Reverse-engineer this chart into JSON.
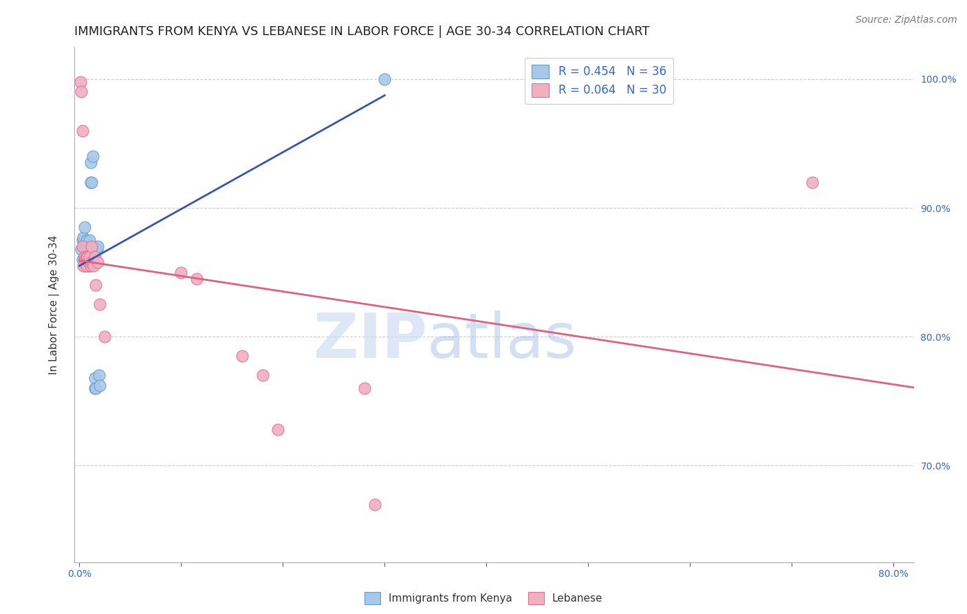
{
  "title": "IMMIGRANTS FROM KENYA VS LEBANESE IN LABOR FORCE | AGE 30-34 CORRELATION CHART",
  "source": "Source: ZipAtlas.com",
  "ylabel": "In Labor Force | Age 30-34",
  "x_tick_labels": [
    "0.0%",
    "",
    "",
    "",
    "",
    "",
    "",
    "",
    "80.0%"
  ],
  "x_tick_values": [
    0.0,
    0.1,
    0.2,
    0.3,
    0.4,
    0.5,
    0.6,
    0.7,
    0.8
  ],
  "y_tick_labels": [
    "100.0%",
    "90.0%",
    "80.0%",
    "70.0%"
  ],
  "y_tick_values": [
    1.0,
    0.9,
    0.8,
    0.7
  ],
  "xlim": [
    -0.005,
    0.82
  ],
  "ylim": [
    0.625,
    1.025
  ],
  "kenya_R": 0.454,
  "kenya_N": 36,
  "lebanese_R": 0.064,
  "lebanese_N": 30,
  "kenya_color": "#a8c8e8",
  "kenya_edge_color": "#6699cc",
  "lebanese_color": "#f0b0c0",
  "lebanese_edge_color": "#e07090",
  "kenya_x": [
    0.002,
    0.003,
    0.003,
    0.004,
    0.004,
    0.005,
    0.005,
    0.005,
    0.005,
    0.006,
    0.006,
    0.006,
    0.007,
    0.007,
    0.007,
    0.007,
    0.008,
    0.008,
    0.009,
    0.009,
    0.01,
    0.01,
    0.01,
    0.011,
    0.011,
    0.012,
    0.013,
    0.014,
    0.015,
    0.015,
    0.016,
    0.017,
    0.018,
    0.019,
    0.02,
    0.3
  ],
  "kenya_y": [
    0.868,
    0.86,
    0.875,
    0.87,
    0.877,
    0.855,
    0.862,
    0.87,
    0.885,
    0.858,
    0.862,
    0.87,
    0.855,
    0.862,
    0.868,
    0.875,
    0.858,
    0.87,
    0.855,
    0.87,
    0.855,
    0.862,
    0.875,
    0.92,
    0.935,
    0.92,
    0.94,
    0.868,
    0.76,
    0.768,
    0.76,
    0.868,
    0.87,
    0.77,
    0.762,
    1.0
  ],
  "lebanese_x": [
    0.001,
    0.002,
    0.003,
    0.003,
    0.004,
    0.005,
    0.006,
    0.007,
    0.007,
    0.008,
    0.009,
    0.01,
    0.011,
    0.012,
    0.012,
    0.013,
    0.014,
    0.015,
    0.016,
    0.018,
    0.02,
    0.025,
    0.1,
    0.115,
    0.16,
    0.18,
    0.195,
    0.28,
    0.29,
    0.72
  ],
  "lebanese_y": [
    0.998,
    0.99,
    0.96,
    0.87,
    0.855,
    0.862,
    0.86,
    0.862,
    0.855,
    0.862,
    0.858,
    0.862,
    0.855,
    0.858,
    0.87,
    0.858,
    0.855,
    0.862,
    0.84,
    0.858,
    0.825,
    0.8,
    0.85,
    0.845,
    0.785,
    0.77,
    0.728,
    0.76,
    0.67,
    0.92
  ],
  "grid_color": "#cccccc",
  "background_color": "#ffffff",
  "title_fontsize": 13,
  "axis_label_fontsize": 11,
  "tick_fontsize": 10,
  "legend_fontsize": 12,
  "source_fontsize": 10
}
